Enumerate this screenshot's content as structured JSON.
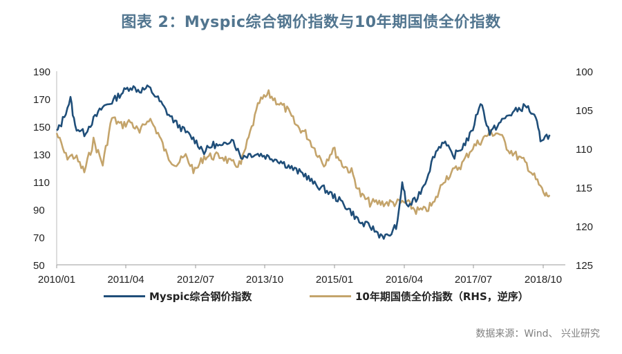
{
  "title": "图表 2：Myspic综合钢价指数与10年期国债全价指数",
  "source": "数据来源：Wind、 兴业研究",
  "chart_data": {
    "type": "line",
    "title": "图表 2：Myspic综合钢价指数与10年期国债全价指数",
    "x_ticks": [
      "2010/01",
      "2011/04",
      "2012/07",
      "2013/10",
      "2015/01",
      "2016/04",
      "2017/07",
      "2018/10"
    ],
    "left_axis": {
      "ylim": [
        50,
        190
      ],
      "ticks": [
        50,
        70,
        90,
        110,
        130,
        150,
        170,
        190
      ]
    },
    "right_axis": {
      "ylim": [
        100,
        125
      ],
      "ticks": [
        100,
        105,
        110,
        115,
        120,
        125
      ],
      "reversed": true
    },
    "grid": false,
    "legend_position": "bottom",
    "series": [
      {
        "name": "Myspic综合钢价指数",
        "axis": "left",
        "color": "#1f4e79",
        "x": [
          "2010/01",
          "2010/02",
          "2010/04",
          "2010/05",
          "2010/07",
          "2010/09",
          "2010/11",
          "2011/01",
          "2011/03",
          "2011/05",
          "2011/07",
          "2011/09",
          "2011/11",
          "2012/01",
          "2012/03",
          "2012/05",
          "2012/07",
          "2012/09",
          "2012/11",
          "2013/01",
          "2013/03",
          "2013/05",
          "2013/07",
          "2013/09",
          "2013/11",
          "2014/01",
          "2014/03",
          "2014/05",
          "2014/07",
          "2014/09",
          "2014/11",
          "2015/01",
          "2015/03",
          "2015/05",
          "2015/07",
          "2015/09",
          "2015/11",
          "2016/01",
          "2016/03",
          "2016/04",
          "2016/05",
          "2016/07",
          "2016/09",
          "2016/11",
          "2017/01",
          "2017/03",
          "2017/05",
          "2017/07",
          "2017/09",
          "2017/11",
          "2018/01",
          "2018/03",
          "2018/05",
          "2018/07",
          "2018/09",
          "2018/10",
          "2018/12"
        ],
        "values": [
          146,
          152,
          170,
          150,
          145,
          155,
          164,
          168,
          174,
          179,
          176,
          178,
          170,
          160,
          152,
          146,
          140,
          132,
          137,
          135,
          142,
          128,
          130,
          130,
          128,
          126,
          122,
          118,
          115,
          108,
          105,
          100,
          95,
          88,
          80,
          78,
          72,
          70,
          80,
          110,
          92,
          97,
          110,
          130,
          140,
          128,
          135,
          145,
          168,
          145,
          152,
          158,
          162,
          165,
          155,
          141,
          144
        ]
      },
      {
        "name": "10年期国债全价指数（RHS，逆序）",
        "axis": "right",
        "color": "#c4a46b",
        "x": [
          "2010/01",
          "2010/03",
          "2010/05",
          "2010/07",
          "2010/09",
          "2010/11",
          "2011/01",
          "2011/03",
          "2011/05",
          "2011/07",
          "2011/09",
          "2011/11",
          "2012/01",
          "2012/03",
          "2012/05",
          "2012/07",
          "2012/09",
          "2012/11",
          "2013/01",
          "2013/03",
          "2013/05",
          "2013/07",
          "2013/09",
          "2013/11",
          "2014/01",
          "2014/03",
          "2014/05",
          "2014/07",
          "2014/09",
          "2014/11",
          "2015/01",
          "2015/03",
          "2015/05",
          "2015/07",
          "2015/09",
          "2015/11",
          "2016/01",
          "2016/03",
          "2016/05",
          "2016/07",
          "2016/09",
          "2016/11",
          "2017/01",
          "2017/03",
          "2017/05",
          "2017/07",
          "2017/09",
          "2017/11",
          "2018/01",
          "2018/03",
          "2018/05",
          "2018/07",
          "2018/09",
          "2018/11",
          "2018/12"
        ],
        "values": [
          108,
          111,
          111,
          113,
          109,
          112,
          106,
          107,
          106.5,
          108,
          106,
          108,
          111,
          112,
          111,
          113,
          111,
          111,
          111,
          112,
          112,
          108,
          104,
          103,
          104,
          105,
          107,
          108,
          110,
          112,
          110,
          112,
          113,
          116,
          117,
          117,
          117,
          117,
          117,
          118,
          118,
          117,
          114,
          113,
          112,
          110,
          109,
          108,
          108,
          110,
          111,
          112,
          114,
          116,
          116
        ]
      }
    ]
  }
}
